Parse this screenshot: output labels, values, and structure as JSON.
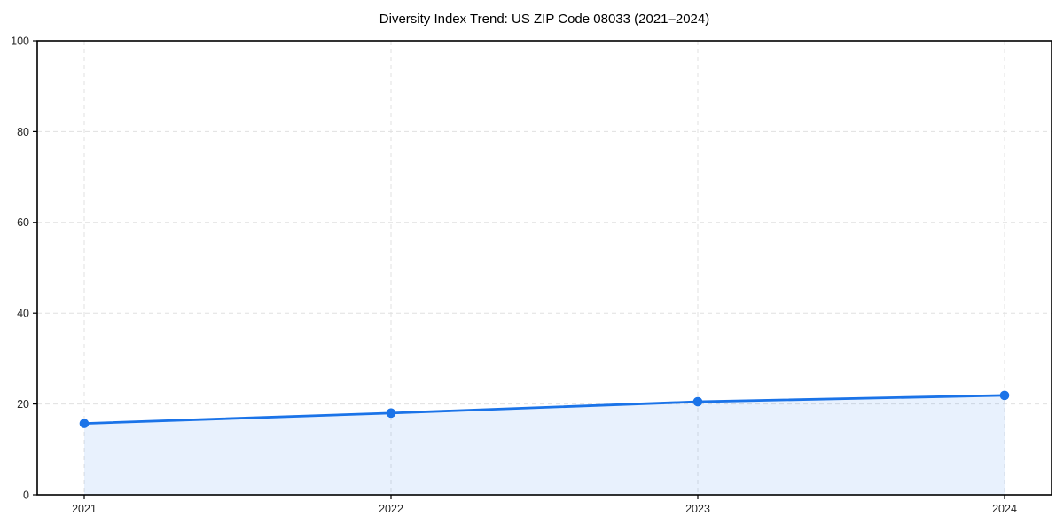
{
  "figure": {
    "background": "#ffffff"
  },
  "chart_data": {
    "type": "area",
    "title": "Diversity Index Trend: US ZIP Code 08033 (2021–2024)",
    "x_categories": [
      "2021",
      "2022",
      "2023",
      "2024"
    ],
    "series": [
      {
        "name": "Diversity Index",
        "values": [
          15.7,
          18.0,
          20.5,
          21.9
        ]
      }
    ],
    "xlabel": "",
    "ylabel": "",
    "ylim": [
      0,
      100
    ],
    "yticks": [
      0,
      20,
      40,
      60,
      80,
      100
    ],
    "grid": true,
    "grid_style": "dashed",
    "legend_position": "none",
    "marker": "circle",
    "colors": {
      "line": "#1a73e8",
      "area_fill": "rgba(26,115,232,0.10)",
      "grid": "#e0e0e0",
      "axis": "#000000",
      "tick_text": "#262626",
      "title_text": "#000000",
      "background": "#ffffff"
    }
  }
}
